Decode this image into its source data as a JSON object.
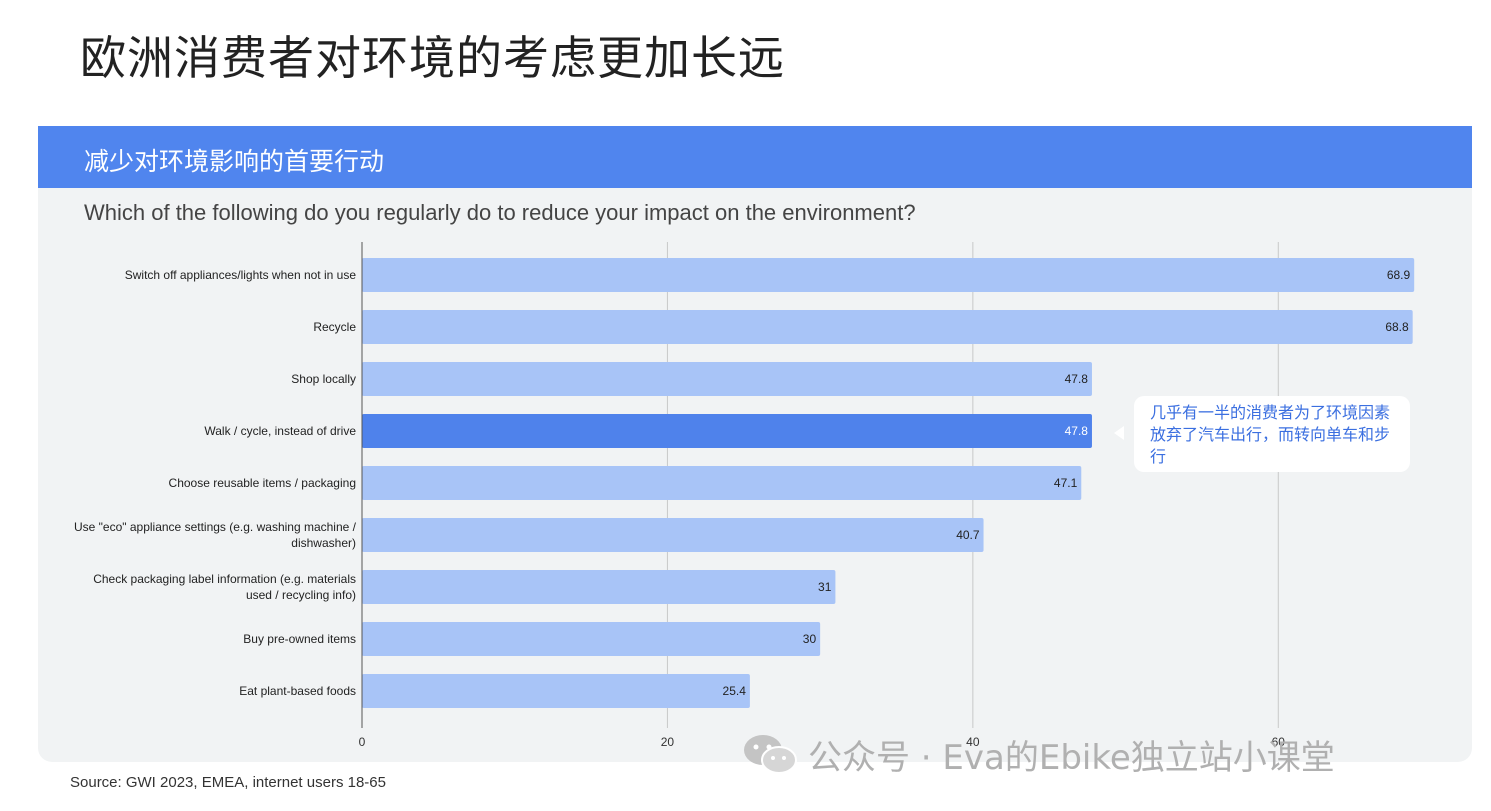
{
  "slide": {
    "title": "欧洲消费者对环境的考虑更加长远",
    "panel_title": "减少对环境影响的首要行动",
    "source": "Source: GWI 2023, EMEA, internet users 18-65",
    "watermark": "公众号 · Eva的Ebike独立站小课堂"
  },
  "callout": {
    "text": "几乎有一半的消费者为了环境因素放弃了汽车出行，而转向单车和步行"
  },
  "colors": {
    "header": "#5085ee",
    "bar": "#a8c4f7",
    "bar_highlight": "#4f82eb",
    "grid": "#c8c8c8"
  },
  "chart_data": {
    "type": "bar",
    "orientation": "horizontal",
    "title": "Which of the following do you regularly do to reduce your impact on the environment?",
    "categories": [
      "Switch off appliances/lights when not in use",
      "Recycle",
      "Shop locally",
      "Walk / cycle, instead of drive",
      "Choose reusable items / packaging",
      "Use \"eco\" appliance settings (e.g. washing machine / dishwasher)",
      "Check packaging label information (e.g. materials used / recycling info)",
      "Buy pre-owned items",
      "Eat plant-based foods"
    ],
    "values": [
      68.9,
      68.8,
      47.8,
      47.8,
      47.1,
      40.7,
      31,
      30,
      25.4
    ],
    "value_labels": [
      "68.9",
      "68.8",
      "47.8",
      "47.8",
      "47.1",
      "40.7",
      "31",
      "30",
      "25.4"
    ],
    "highlight_index": 3,
    "xlim": [
      0,
      70
    ],
    "xticks": [
      0,
      20,
      40,
      60
    ],
    "xtick_labels": [
      "0",
      "20",
      "40",
      "60"
    ],
    "grid": true,
    "legend": "none"
  }
}
